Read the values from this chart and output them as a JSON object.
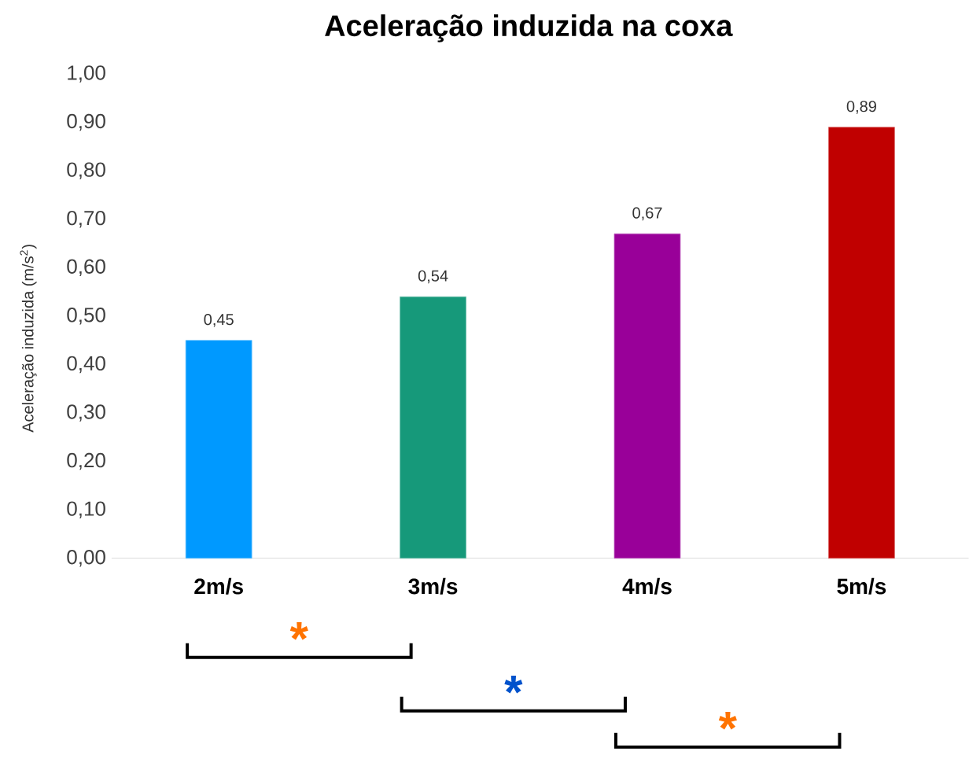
{
  "chart_data": {
    "type": "bar",
    "title": "Aceleração induzida na coxa",
    "ylabel": "Aceleração induzida (m/s$^{2}$)",
    "categories": [
      "2m/s",
      "3m/s",
      "4m/s",
      "5m/s"
    ],
    "values": [
      0.45,
      0.54,
      0.67,
      0.89
    ],
    "colors": [
      "#0099ff",
      "#16997a",
      "#990099",
      "#c00000"
    ],
    "data_labels": true,
    "value_labels": [
      "0,45",
      "0,54",
      "0,67",
      "0,89"
    ],
    "ylim": [
      0,
      1
    ],
    "yticks": [
      {
        "value": 0,
        "label": "0,00"
      },
      {
        "value": 0.1,
        "label": "0,10"
      },
      {
        "value": 0.2,
        "label": "0,20"
      },
      {
        "value": 0.3,
        "label": "0,30"
      },
      {
        "value": 0.4,
        "label": "0,40"
      },
      {
        "value": 0.5,
        "label": "0,50"
      },
      {
        "value": 0.6,
        "label": "0,60"
      },
      {
        "value": 0.7,
        "label": "0,70"
      },
      {
        "value": 0.8,
        "label": "0,80"
      },
      {
        "value": 0.9,
        "label": "0,90"
      },
      {
        "value": 1,
        "label": "1,00"
      }
    ],
    "annotations": [
      "*",
      "*",
      "*"
    ]
  }
}
